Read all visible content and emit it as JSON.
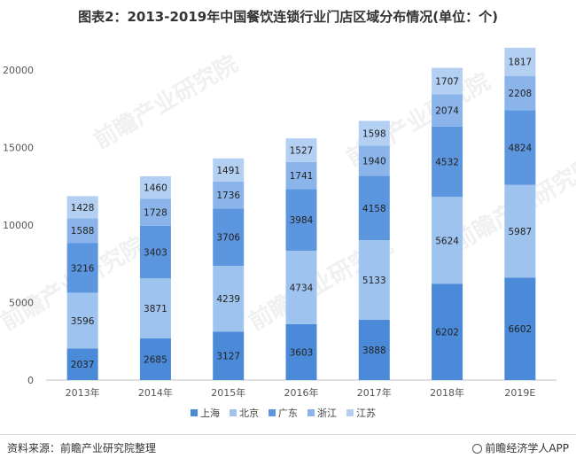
{
  "title": "图表2：2013-2019年中国餐饮连锁行业门店区域分布情况(单位：个)",
  "chart_data": {
    "type": "bar",
    "stacked": true,
    "categories": [
      "2013年",
      "2014年",
      "2015年",
      "2016年",
      "2017年",
      "2018年",
      "2019E"
    ],
    "series": [
      {
        "name": "上海",
        "color": "#4a8ad8",
        "values": [
          2037,
          2685,
          3127,
          3603,
          3888,
          6202,
          6602
        ]
      },
      {
        "name": "北京",
        "color": "#9fc3ef",
        "values": [
          3596,
          3871,
          4239,
          4734,
          5133,
          5624,
          5987
        ]
      },
      {
        "name": "广东",
        "color": "#5c96de",
        "values": [
          3216,
          3403,
          3706,
          3984,
          4158,
          4532,
          4824
        ]
      },
      {
        "name": "浙江",
        "color": "#8bb5ea",
        "values": [
          1588,
          1728,
          1736,
          1741,
          1940,
          2074,
          2208
        ]
      },
      {
        "name": "江苏",
        "color": "#b3d0f3",
        "values": [
          1428,
          1460,
          1491,
          1527,
          1598,
          1707,
          1817
        ]
      }
    ],
    "yticks": [
      0,
      5000,
      10000,
      15000,
      20000
    ],
    "ylim": [
      0,
      22000
    ],
    "legend_position": "bottom"
  },
  "watermark": "前瞻产业研究院",
  "footer": {
    "source": "资料来源：前瞻产业研究院整理",
    "brand": "前瞻经济学人APP"
  }
}
